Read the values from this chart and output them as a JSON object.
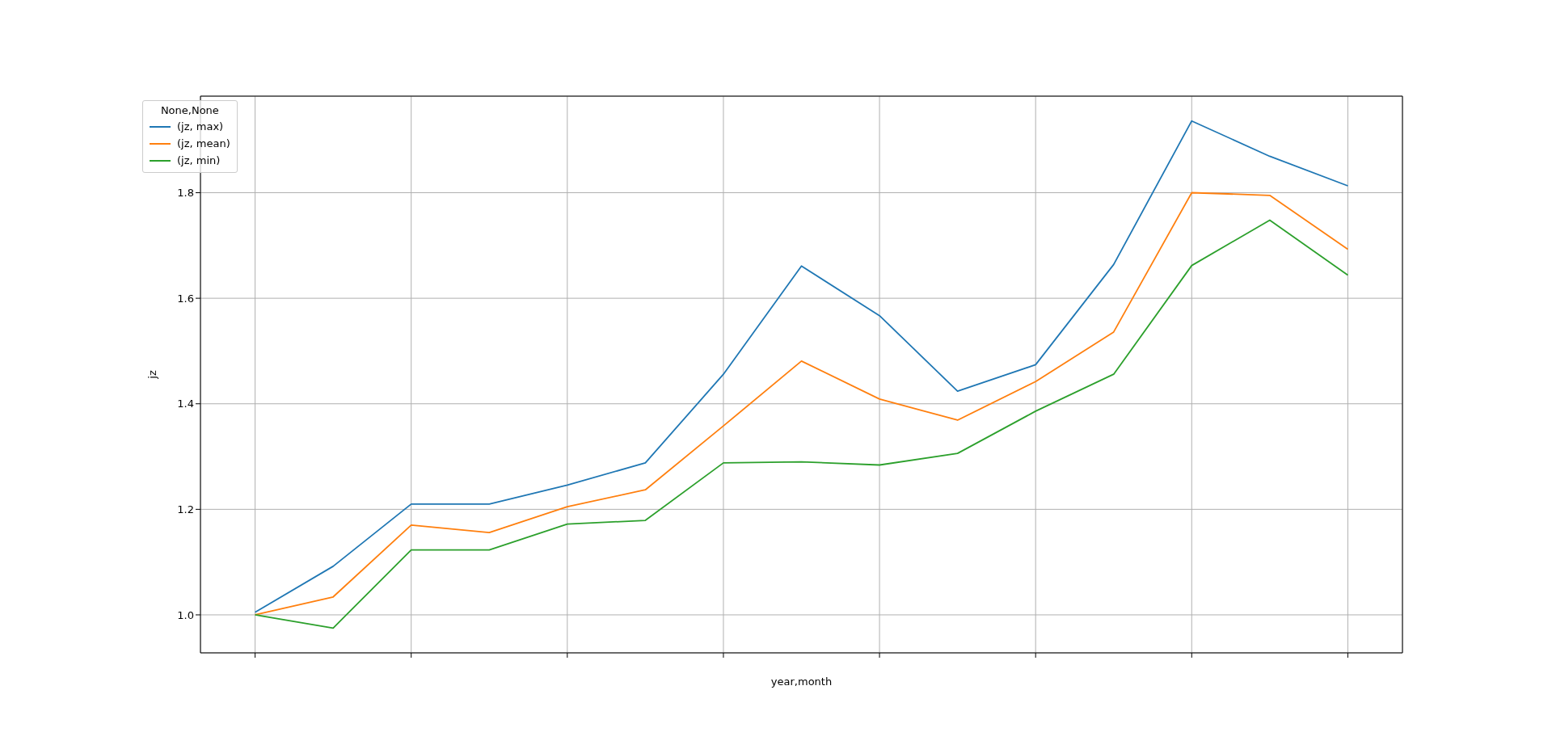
{
  "chart_data": {
    "type": "line",
    "xlabel": "year,month",
    "ylabel": "jz",
    "legend_title": "None,None",
    "categories": [
      null,
      null,
      null,
      null,
      null,
      null,
      null,
      null,
      null,
      null,
      null,
      null,
      null,
      null,
      null
    ],
    "ylim": [
      0.928,
      1.983
    ],
    "yticks": [
      {
        "value": 1,
        "label": "1.0"
      },
      {
        "value": 1.2,
        "label": "1.2"
      },
      {
        "value": 1.4,
        "label": "1.4"
      },
      {
        "value": 1.6,
        "label": "1.6"
      },
      {
        "value": 1.8,
        "label": "1.8"
      }
    ],
    "tick_labels": "y",
    "grid": true,
    "legend": "top left",
    "marker": "none",
    "line_style": "solid",
    "series": [
      {
        "name": "(jz, max)",
        "color": "#1f77b4",
        "values": [
          1.005,
          1.092,
          1.21,
          1.21,
          1.246,
          1.288,
          1.456,
          1.661,
          1.567,
          1.424,
          1.474,
          1.664,
          1.936,
          1.869,
          1.813
        ]
      },
      {
        "name": "(jz, mean)",
        "color": "#ff7f0e",
        "values": [
          1.0,
          1.034,
          1.17,
          1.156,
          1.205,
          1.237,
          1.358,
          1.481,
          1.409,
          1.369,
          1.442,
          1.536,
          1.8,
          1.795,
          1.693
        ]
      },
      {
        "name": "(jz, min)",
        "color": "#2ca02c",
        "values": [
          1.0,
          0.975,
          1.123,
          1.123,
          1.172,
          1.179,
          1.288,
          1.29,
          1.284,
          1.306,
          1.386,
          1.456,
          1.662,
          1.748,
          1.644
        ]
      }
    ]
  }
}
